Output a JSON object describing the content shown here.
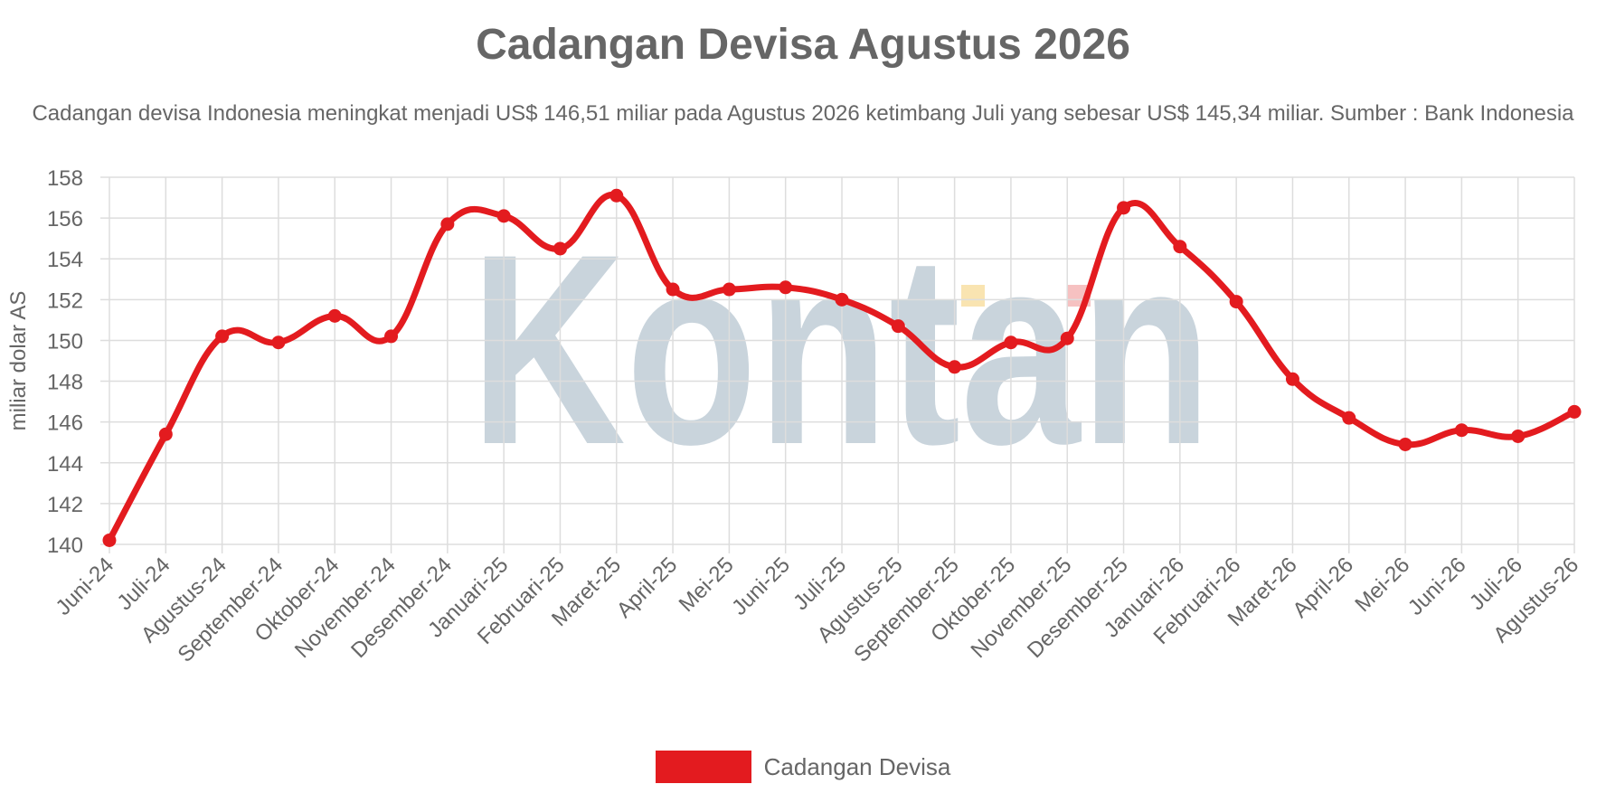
{
  "title": "Cadangan Devisa Agustus 2026",
  "subtitle": "Cadangan devisa Indonesia meningkat menjadi US$ 146,51 miliar pada Agustus 2026 ketimbang Juli yang sebesar US$ 145,34 miliar. Sumber : Bank Indonesia",
  "watermark": "Kontan",
  "colors": {
    "series": "#e31b1f",
    "grid": "#dddddd",
    "text": "#666666",
    "watermark": "#b7c6d0"
  },
  "chart_data": {
    "type": "line",
    "title": "Cadangan Devisa Agustus 2026",
    "ylabel": "miliar dolar AS",
    "xlabel": "",
    "ylim": [
      140,
      158
    ],
    "yticks": [
      140,
      142,
      144,
      146,
      148,
      150,
      152,
      154,
      156,
      158
    ],
    "grid": true,
    "legend_position": "bottom",
    "categories": [
      "Juni-24",
      "Juli-24",
      "Agustus-24",
      "September-24",
      "Oktober-24",
      "November-24",
      "Desember-24",
      "Januari-25",
      "Februari-25",
      "Maret-25",
      "April-25",
      "Mei-25",
      "Juni-25",
      "Juli-25",
      "Agustus-25",
      "September-25",
      "Oktober-25",
      "November-25",
      "Desember-25",
      "Januari-26",
      "Februari-26",
      "Maret-26",
      "April-26",
      "Mei-26",
      "Juni-26",
      "Juli-26",
      "Agustus-26"
    ],
    "series": [
      {
        "name": "Cadangan Devisa",
        "color": "#e31b1f",
        "values": [
          140.2,
          145.4,
          150.2,
          149.9,
          151.2,
          150.2,
          155.7,
          156.1,
          154.5,
          157.1,
          152.5,
          152.5,
          152.6,
          152.0,
          150.7,
          148.7,
          149.9,
          150.1,
          156.5,
          154.6,
          151.9,
          148.1,
          146.2,
          144.9,
          145.6,
          145.3,
          146.5
        ]
      }
    ]
  }
}
